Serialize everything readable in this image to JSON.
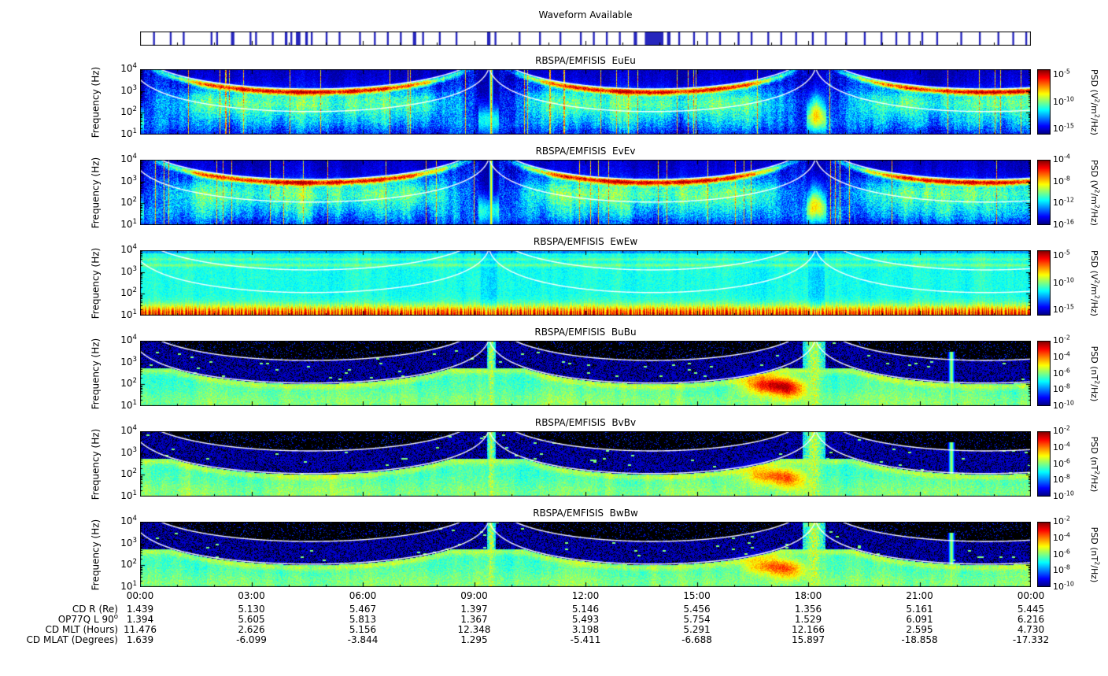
{
  "chart_data": {
    "type": "heatmap",
    "figure_kind": "spectrogram-stack",
    "waveform_bar": {
      "title": "Waveform Available",
      "segments_hours": [
        [
          0.35,
          0.05
        ],
        [
          0.8,
          0.05
        ],
        [
          1.15,
          0.05
        ],
        [
          1.9,
          0.05
        ],
        [
          2.05,
          0.05
        ],
        [
          2.45,
          0.09
        ],
        [
          2.95,
          0.05
        ],
        [
          3.1,
          0.05
        ],
        [
          3.55,
          0.05
        ],
        [
          3.9,
          0.07
        ],
        [
          4.05,
          0.05
        ],
        [
          4.2,
          0.12
        ],
        [
          4.45,
          0.07
        ],
        [
          4.6,
          0.05
        ],
        [
          5.0,
          0.05
        ],
        [
          5.35,
          0.05
        ],
        [
          5.9,
          0.05
        ],
        [
          6.3,
          0.05
        ],
        [
          6.65,
          0.05
        ],
        [
          7.0,
          0.05
        ],
        [
          7.35,
          0.09
        ],
        [
          7.6,
          0.05
        ],
        [
          8.05,
          0.05
        ],
        [
          8.5,
          0.05
        ],
        [
          9.35,
          0.09
        ],
        [
          9.55,
          0.05
        ],
        [
          10.2,
          0.05
        ],
        [
          10.75,
          0.05
        ],
        [
          11.3,
          0.05
        ],
        [
          11.85,
          0.05
        ],
        [
          12.2,
          0.05
        ],
        [
          12.55,
          0.05
        ],
        [
          12.9,
          0.05
        ],
        [
          13.3,
          0.09
        ],
        [
          13.6,
          0.5
        ],
        [
          14.2,
          0.09
        ],
        [
          14.5,
          0.05
        ],
        [
          14.9,
          0.05
        ],
        [
          15.25,
          0.05
        ],
        [
          15.6,
          0.05
        ],
        [
          16.1,
          0.05
        ],
        [
          16.45,
          0.05
        ],
        [
          16.9,
          0.05
        ],
        [
          17.25,
          0.05
        ],
        [
          17.65,
          0.05
        ],
        [
          18.1,
          0.05
        ],
        [
          18.45,
          0.05
        ],
        [
          19.0,
          0.05
        ],
        [
          19.5,
          0.05
        ],
        [
          19.95,
          0.05
        ],
        [
          20.35,
          0.05
        ],
        [
          20.7,
          0.05
        ],
        [
          21.05,
          0.05
        ],
        [
          21.45,
          0.05
        ],
        [
          22.1,
          0.05
        ],
        [
          22.6,
          0.05
        ],
        [
          23.1,
          0.05
        ],
        [
          23.5,
          0.05
        ],
        [
          23.85,
          0.05
        ]
      ]
    },
    "time_axis": {
      "range_hours": [
        0,
        24
      ],
      "tick_labels": [
        "00:00",
        "03:00",
        "06:00",
        "09:00",
        "12:00",
        "15:00",
        "18:00",
        "21:00",
        "00:00"
      ],
      "minor_tick_hours": 1
    },
    "freq_axis": {
      "label": "Frequency (Hz)",
      "scale": "log",
      "range_hz": [
        10,
        10000
      ],
      "tick_labels": [
        "10^4",
        "10^3",
        "10^2",
        "10^1"
      ]
    },
    "panels": [
      {
        "title": "RBSPA/EMFISIS  EuEu",
        "style": "e",
        "colorbar": {
          "label": "PSD (V^2/m^2/Hz)",
          "range_exp": [
            -4,
            -16
          ],
          "tick_exps": [
            -5,
            -10,
            -15
          ]
        }
      },
      {
        "title": "RBSPA/EMFISIS  EvEv",
        "style": "e",
        "colorbar": {
          "label": "PSD (V^2/m^2/Hz)",
          "range_exp": [
            -4,
            -16
          ],
          "tick_exps": [
            -4,
            -8,
            -12,
            -16
          ]
        }
      },
      {
        "title": "RBSPA/EMFISIS  EwEw",
        "style": "ew",
        "colorbar": {
          "label": "PSD (V^2/m^2/Hz)",
          "range_exp": [
            -4,
            -16
          ],
          "tick_exps": [
            -5,
            -10,
            -15
          ]
        }
      },
      {
        "title": "RBSPA/EMFISIS  BuBu",
        "style": "b",
        "colorbar": {
          "label": "PSD (nT^2/Hz)",
          "range_exp": [
            -2,
            -10
          ],
          "tick_exps": [
            -2,
            -4,
            -6,
            -8,
            -10
          ]
        }
      },
      {
        "title": "RBSPA/EMFISIS  BvBv",
        "style": "b",
        "colorbar": {
          "label": "PSD (nT^2/Hz)",
          "range_exp": [
            -2,
            -10
          ],
          "tick_exps": [
            -2,
            -4,
            -6,
            -8,
            -10
          ]
        }
      },
      {
        "title": "RBSPA/EMFISIS  BwBw",
        "style": "b",
        "colorbar": {
          "label": "PSD (nT^2/Hz)",
          "range_exp": [
            -2,
            -10
          ],
          "tick_exps": [
            -2,
            -4,
            -6,
            -8,
            -10
          ]
        }
      }
    ],
    "white_curves": {
      "description": "two white overplotted curves per panel (electron-cyclotron-frequency related, lower = upper/11), peaking at perigee",
      "perigee_hours": [
        -0.2,
        9.4,
        18.2,
        27.4
      ],
      "perigee_R": 1.15,
      "apogee_R": 5.6
    },
    "ephemeris": {
      "rows": [
        {
          "label": "CD R (Re)",
          "values": [
            "1.439",
            "5.130",
            "5.467",
            "1.397",
            "5.146",
            "5.456",
            "1.356",
            "5.161",
            "5.445"
          ]
        },
        {
          "label": "OP77Q L 90^o",
          "values": [
            "1.394",
            "5.605",
            "5.813",
            "1.367",
            "5.493",
            "5.754",
            "1.529",
            "6.091",
            "6.216"
          ]
        },
        {
          "label": "CD MLT (Hours)",
          "values": [
            "11.476",
            "2.626",
            "5.156",
            "12.348",
            "3.198",
            "5.291",
            "12.166",
            "2.595",
            "4.730"
          ]
        },
        {
          "label": "CD MLAT (Degrees)",
          "values": [
            "1.639",
            "-6.099",
            "-3.844",
            "1.295",
            "-5.411",
            "-6.688",
            "15.897",
            "-18.858",
            "-17.332"
          ]
        }
      ]
    }
  }
}
